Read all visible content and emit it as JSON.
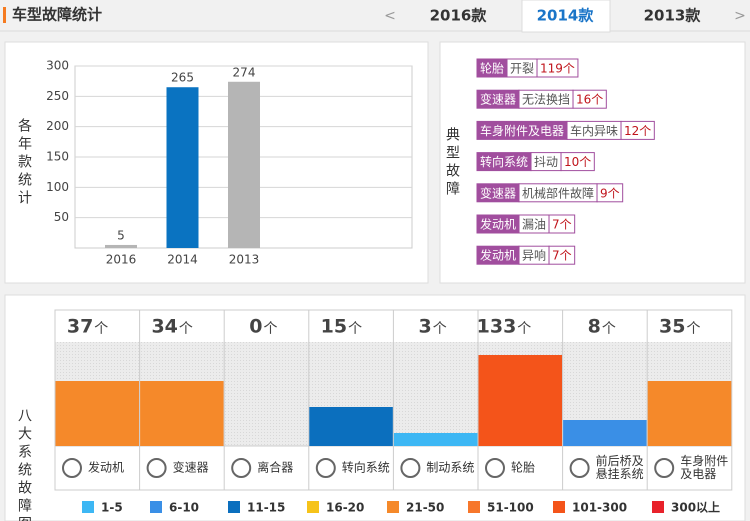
{
  "header": {
    "title": "车型故障统计",
    "tabs": [
      "<",
      "2016款",
      "2014款",
      "2013款",
      ">"
    ],
    "active_tab": 2
  },
  "chart_data": [
    {
      "type": "bar",
      "y_label": "各年款统计",
      "categories": [
        "2016",
        "2014",
        "2013"
      ],
      "values": [
        5,
        265,
        274
      ],
      "colors": [
        "#b5b5b5",
        "#0a73c1",
        "#b5b5b5"
      ],
      "ylim": [
        0,
        300
      ],
      "yticks": [
        50,
        100,
        150,
        200,
        250,
        300
      ],
      "grid": true
    },
    {
      "type": "level-bar",
      "y_label": "八大系统故障图",
      "unit": "个",
      "categories": [
        [
          "发动机"
        ],
        [
          "变速器"
        ],
        [
          "离合器"
        ],
        [
          "转向系统"
        ],
        [
          "制动系统"
        ],
        [
          "轮胎"
        ],
        [
          "前后桥及",
          "悬挂系统"
        ],
        [
          "车身附件",
          "及电器"
        ]
      ],
      "values": [
        37,
        34,
        0,
        15,
        3,
        133,
        8,
        35
      ],
      "legend": [
        {
          "label": "1-5",
          "color": "#3db7f4"
        },
        {
          "label": "6-10",
          "color": "#3a8fe6"
        },
        {
          "label": "11-15",
          "color": "#0b6fbe"
        },
        {
          "label": "16-20",
          "color": "#f6c31a"
        },
        {
          "label": "21-50",
          "color": "#f5892a"
        },
        {
          "label": "51-100",
          "color": "#f7772b"
        },
        {
          "label": "101-300",
          "color": "#f4541a"
        },
        {
          "label": "300以上",
          "color": "#e8222b"
        }
      ]
    }
  ],
  "faults": {
    "label": "典型故障",
    "rows": [
      {
        "part": "轮胎",
        "fault": "开裂",
        "count": "119个"
      },
      {
        "part": "变速器",
        "fault": "无法换挡",
        "count": "16个"
      },
      {
        "part": "车身附件及电器",
        "fault": "车内异味",
        "count": "12个"
      },
      {
        "part": "转向系统",
        "fault": "抖动",
        "count": "10个"
      },
      {
        "part": "变速器",
        "fault": "机械部件故障",
        "count": "9个"
      },
      {
        "part": "发动机",
        "fault": "漏油",
        "count": "7个"
      },
      {
        "part": "发动机",
        "fault": "异响",
        "count": "7个"
      }
    ]
  }
}
